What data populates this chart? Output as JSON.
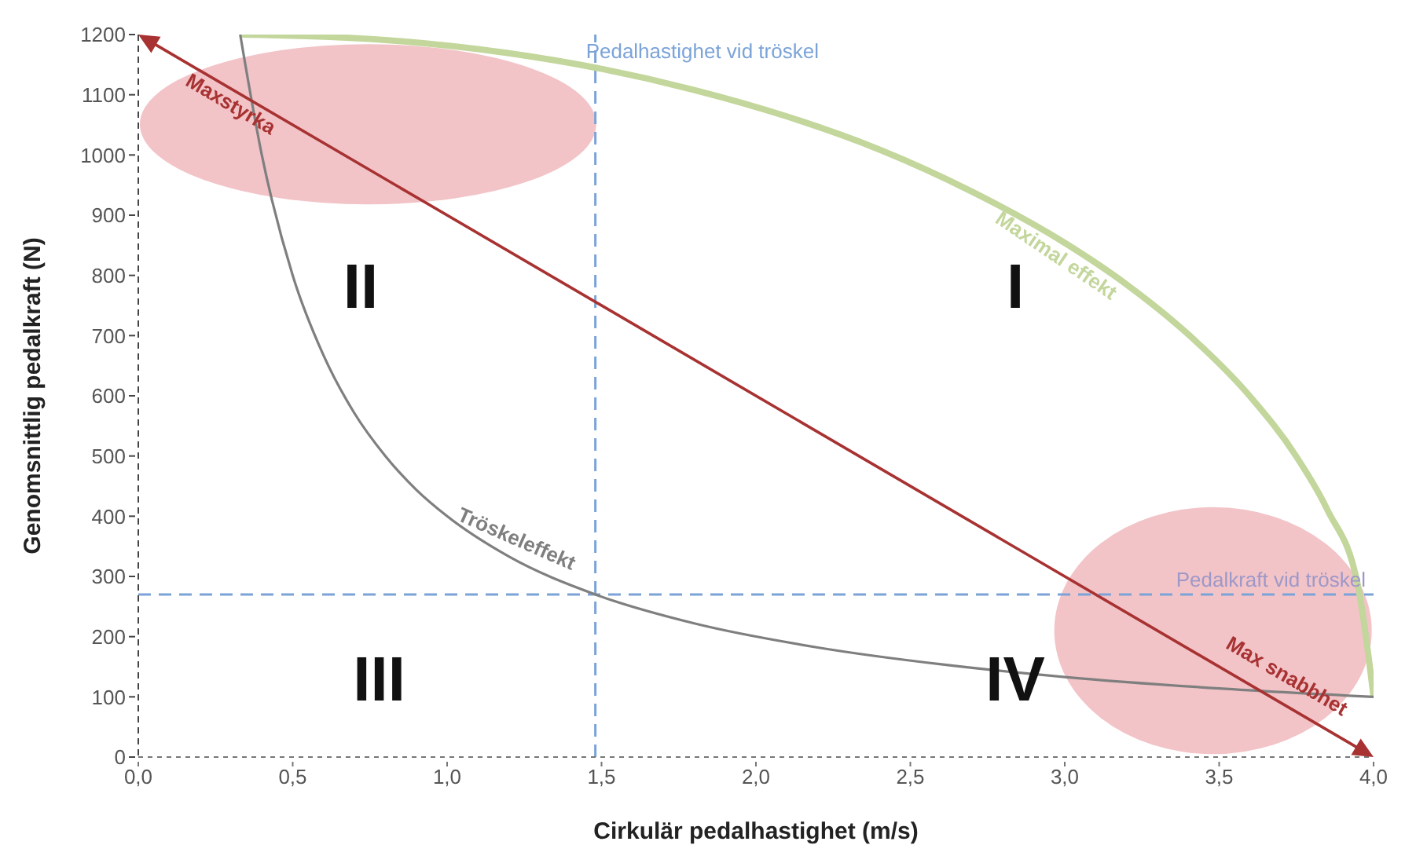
{
  "chart_data": {
    "type": "line",
    "xlabel": "Cirkulär pedalhastighet (m/s)",
    "ylabel": "Genomsnittlig pedalkraft (N)",
    "xlim": [
      0,
      4
    ],
    "ylim": [
      0,
      1200
    ],
    "xticks": [
      {
        "value": 0,
        "label": "0,0"
      },
      {
        "value": 0.5,
        "label": "0,5"
      },
      {
        "value": 1,
        "label": "1,0"
      },
      {
        "value": 1.5,
        "label": "1,5"
      },
      {
        "value": 2,
        "label": "2,0"
      },
      {
        "value": 2.5,
        "label": "2,5"
      },
      {
        "value": 3,
        "label": "3,0"
      },
      {
        "value": 3.5,
        "label": "3,5"
      },
      {
        "value": 4,
        "label": "4,0"
      }
    ],
    "yticks": [
      0,
      100,
      200,
      300,
      400,
      500,
      600,
      700,
      800,
      900,
      1000,
      1100,
      1200
    ],
    "marker": "none",
    "line_style": "solid",
    "series": [
      {
        "name": "Maximal effekt",
        "color": "#c3d69b",
        "x": [
          0.33,
          0.8,
          1.2,
          1.5,
          1.8,
          2.1,
          2.4,
          2.7,
          3.0,
          3.2,
          3.4,
          3.6,
          3.75,
          3.85,
          3.95,
          4.0
        ],
        "values": [
          1200,
          1191,
          1169,
          1143,
          1108,
          1064,
          1009,
          939,
          854,
          785,
          702,
          599,
          499,
          411,
          283,
          100
        ]
      },
      {
        "name": "Tröskeleffekt",
        "color": "#7f7f7f",
        "x": [
          0.33,
          0.4,
          0.5,
          0.6,
          0.7,
          0.8,
          0.9,
          1.0,
          1.2,
          1.48,
          1.8,
          2.2,
          2.6,
          3.0,
          3.5,
          4.0
        ],
        "values": [
          1200,
          1000,
          800,
          667,
          571,
          500,
          444,
          400,
          333,
          270,
          222,
          182,
          154,
          133,
          114,
          100
        ]
      }
    ],
    "ref_lines": [
      {
        "axis": "x",
        "value": 1.48,
        "label": "Pedalhastighet vid tröskel",
        "color": "#7ba3d8",
        "line_style": "dashed"
      },
      {
        "axis": "y",
        "value": 270,
        "label": "Pedalkraft vid tröskel",
        "color": "#7ba3d8",
        "line_style": "dashed"
      }
    ],
    "annotations": [
      "I",
      "II",
      "III",
      "IV",
      "Maxstyrka",
      "Max snabbhet"
    ]
  }
}
